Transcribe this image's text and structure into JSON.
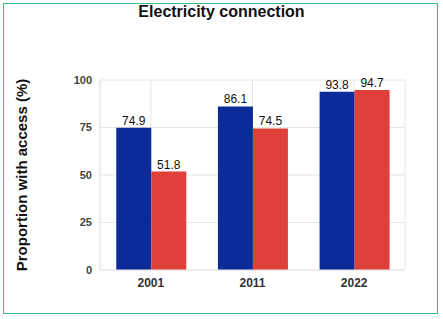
{
  "chart_data": {
    "type": "bar",
    "title": "Electricity connection",
    "y_label": "Proportion with access (%)",
    "categories": [
      "2001",
      "2011",
      "2022"
    ],
    "series": [
      {
        "color": "#0c2a98",
        "values": [
          74.9,
          86.1,
          93.8
        ]
      },
      {
        "color": "#e0403a",
        "values": [
          51.8,
          74.5,
          94.7
        ]
      }
    ],
    "ylim": [
      0,
      100
    ],
    "yticks": [
      0,
      25,
      50,
      75,
      100
    ],
    "grid": true,
    "data_labels": true
  }
}
